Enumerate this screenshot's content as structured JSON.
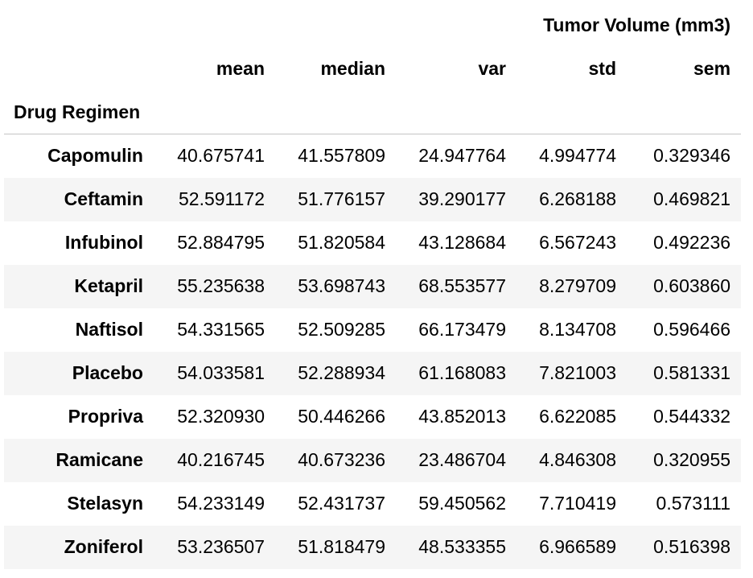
{
  "table": {
    "group_header": "Tumor Volume (mm3)",
    "columns": [
      "mean",
      "median",
      "var",
      "std",
      "sem"
    ],
    "index_name": "Drug Regimen",
    "rows": [
      {
        "label": "Capomulin",
        "values": [
          "40.675741",
          "41.557809",
          "24.947764",
          "4.994774",
          "0.329346"
        ]
      },
      {
        "label": "Ceftamin",
        "values": [
          "52.591172",
          "51.776157",
          "39.290177",
          "6.268188",
          "0.469821"
        ]
      },
      {
        "label": "Infubinol",
        "values": [
          "52.884795",
          "51.820584",
          "43.128684",
          "6.567243",
          "0.492236"
        ]
      },
      {
        "label": "Ketapril",
        "values": [
          "55.235638",
          "53.698743",
          "68.553577",
          "8.279709",
          "0.603860"
        ]
      },
      {
        "label": "Naftisol",
        "values": [
          "54.331565",
          "52.509285",
          "66.173479",
          "8.134708",
          "0.596466"
        ]
      },
      {
        "label": "Placebo",
        "values": [
          "54.033581",
          "52.288934",
          "61.168083",
          "7.821003",
          "0.581331"
        ]
      },
      {
        "label": "Propriva",
        "values": [
          "52.320930",
          "50.446266",
          "43.852013",
          "6.622085",
          "0.544332"
        ]
      },
      {
        "label": "Ramicane",
        "values": [
          "40.216745",
          "40.673236",
          "23.486704",
          "4.846308",
          "0.320955"
        ]
      },
      {
        "label": "Stelasyn",
        "values": [
          "54.233149",
          "52.431737",
          "59.450562",
          "7.710419",
          "0.573111"
        ]
      },
      {
        "label": "Zoniferol",
        "values": [
          "53.236507",
          "51.818479",
          "48.533355",
          "6.966589",
          "0.516398"
        ]
      }
    ]
  }
}
